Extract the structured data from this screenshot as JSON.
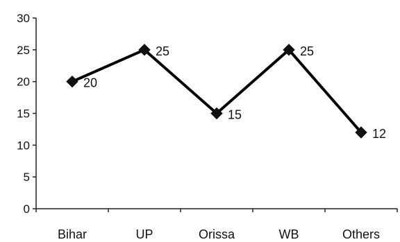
{
  "chart_data": {
    "type": "line",
    "title": "",
    "xlabel": "",
    "ylabel": "",
    "categories": [
      "Bihar",
      "UP",
      "Orissa",
      "WB",
      "Others"
    ],
    "series": [
      {
        "values": [
          20,
          25,
          15,
          25,
          12
        ]
      }
    ],
    "data_labels": [
      "20",
      "25",
      "15",
      "25",
      "12"
    ],
    "ylim": [
      0,
      30
    ],
    "yticks": [
      0,
      5,
      10,
      15,
      20,
      25,
      30
    ],
    "ytick_labels": [
      "0",
      "5",
      "10",
      "15",
      "20",
      "25",
      "30"
    ],
    "grid": false,
    "legend": "none",
    "marker": "diamond",
    "line_color": "#000000"
  }
}
